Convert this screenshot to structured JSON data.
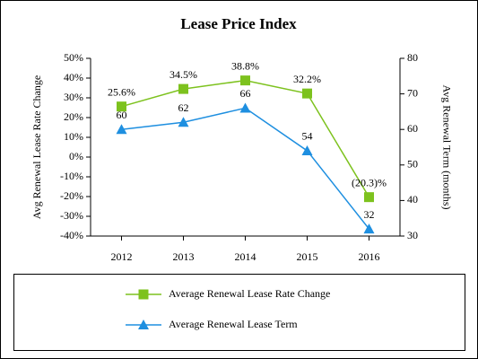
{
  "chart_data": {
    "type": "line",
    "title": "Lease Price Index",
    "y_label": "Avg Renewal Lease Rate Change",
    "y2_label": "Avg Renewal Term (months)",
    "categories": [
      "2012",
      "2013",
      "2014",
      "2015",
      "2016"
    ],
    "series": [
      {
        "name": "Average Renewal Lease Rate Change",
        "color": "#7dc21e",
        "marker": "square",
        "values": [
          25.6,
          34.5,
          38.8,
          32.2,
          -20.3
        ],
        "value_labels": [
          "25.6%",
          "34.5%",
          "38.8%",
          "32.2%",
          "(20.3)%"
        ]
      },
      {
        "name": "Average Renewal Lease Term",
        "color": "#1e8fe0",
        "marker": "triangle",
        "axis": "y2",
        "values": [
          60,
          62,
          66,
          54,
          32
        ]
      }
    ],
    "ylim": [
      -40,
      50
    ],
    "yticks": [
      {
        "value": -40,
        "label": "-40%"
      },
      {
        "value": -30,
        "label": "-30%"
      },
      {
        "value": -20,
        "label": "-20%"
      },
      {
        "value": -10,
        "label": "-10%"
      },
      {
        "value": 0,
        "label": "0%"
      },
      {
        "value": 10,
        "label": "10%"
      },
      {
        "value": 20,
        "label": "20%"
      },
      {
        "value": 30,
        "label": "30%"
      },
      {
        "value": 40,
        "label": "40%"
      },
      {
        "value": 50,
        "label": "50%"
      }
    ],
    "y2lim": [
      30,
      80
    ],
    "y2ticks": [
      30,
      40,
      50,
      60,
      70,
      80
    ]
  }
}
